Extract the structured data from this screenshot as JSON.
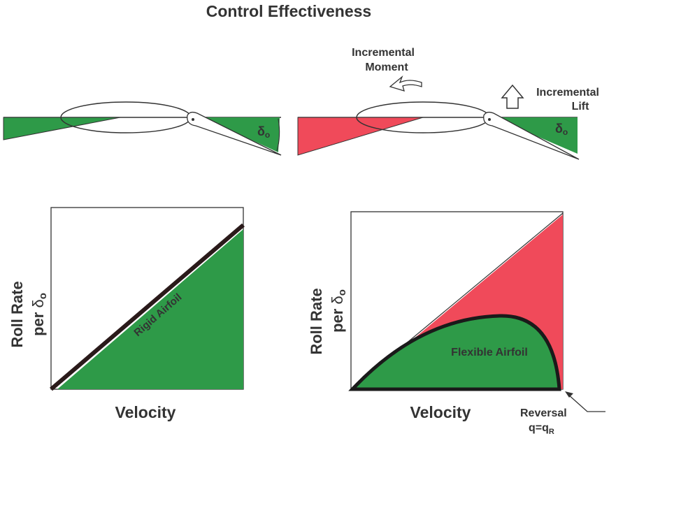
{
  "title": "Control Effectiveness",
  "top_left": {
    "angle_symbol": "δ",
    "angle_subscript": "o"
  },
  "top_right": {
    "moment_label": [
      "Incremental",
      "Moment"
    ],
    "lift_label": [
      "Incremental",
      "Lift"
    ],
    "angle_symbol": "δ",
    "angle_subscript": "o"
  },
  "left_plot": {
    "y_label": "Roll Rate",
    "y_label_per": "per",
    "y_symbol": "δ",
    "y_subscript": "o",
    "x_label": "Velocity",
    "curve_label": "Rigid Airfoil"
  },
  "right_plot": {
    "y_label": "Roll Rate",
    "y_label_per": "per",
    "y_symbol": "δ",
    "y_subscript": "o",
    "x_label": "Velocity",
    "curve_label": "Flexible Airfoil",
    "reversal_label": "Reversal",
    "reversal_q": "q=q",
    "reversal_subscript": "R"
  }
}
